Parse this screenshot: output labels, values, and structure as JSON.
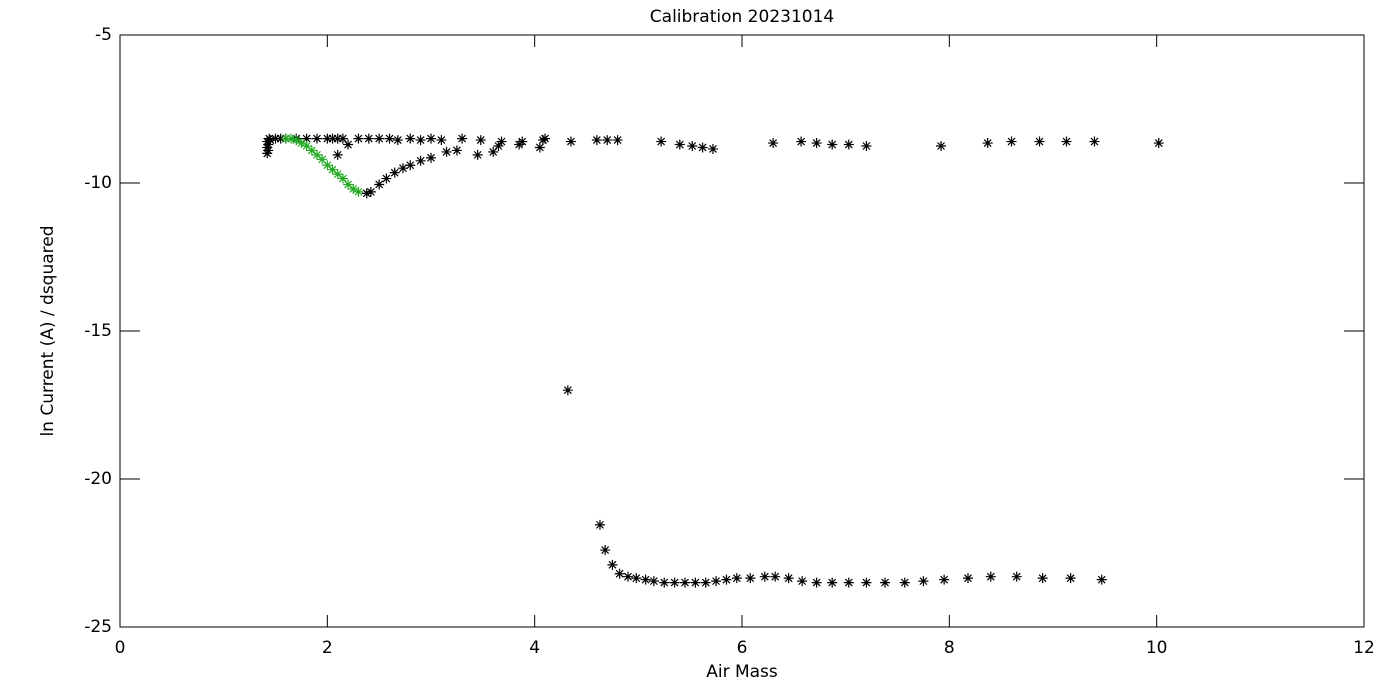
{
  "chart_data": {
    "type": "scatter",
    "title": "Calibration 20231014",
    "x_label": "Air Mass",
    "y_label": "ln Current (A) / dsquared",
    "xlim": [
      0,
      12
    ],
    "ylim": [
      -25,
      -5
    ],
    "xticks": [
      0,
      2,
      4,
      6,
      8,
      10,
      12
    ],
    "yticks": [
      -25,
      -20,
      -15,
      -10,
      -5
    ],
    "marker": "asterisk",
    "series": [
      {
        "color": "#000000",
        "x": [
          1.42,
          1.43,
          1.42,
          1.43,
          1.42,
          1.44,
          1.45,
          1.5,
          1.55,
          1.6,
          1.7,
          1.8,
          1.9,
          2.0,
          2.05,
          2.1,
          2.15,
          2.3,
          2.4,
          2.5,
          2.6,
          2.68,
          2.8,
          2.9,
          3.0,
          3.1,
          3.3,
          3.48,
          3.68,
          3.88,
          4.1,
          4.35,
          4.6,
          4.7,
          4.8,
          5.22,
          5.4,
          5.52,
          5.62,
          5.72,
          6.3,
          6.57,
          6.72,
          6.87,
          7.03,
          7.2,
          7.92,
          8.37,
          8.6,
          8.87,
          9.13,
          9.4,
          10.02,
          2.1,
          2.2,
          2.38,
          2.42,
          2.5,
          2.57,
          2.65,
          2.73,
          2.8,
          2.9,
          3.0,
          3.15,
          3.25,
          3.45,
          3.6,
          3.65,
          3.85,
          4.05,
          4.08,
          4.32,
          4.63,
          4.68,
          4.75,
          4.82,
          4.9,
          4.98,
          5.07,
          5.15,
          5.25,
          5.35,
          5.45,
          5.55,
          5.65,
          5.75,
          5.85,
          5.95,
          6.08,
          6.22,
          6.32,
          6.45,
          6.58,
          6.72,
          6.87,
          7.03,
          7.2,
          7.38,
          7.57,
          7.75,
          7.95,
          8.18,
          8.4,
          8.65,
          8.9,
          9.17,
          9.47
        ],
        "values": [
          -8.6,
          -8.7,
          -8.8,
          -8.9,
          -9.0,
          -8.5,
          -8.55,
          -8.5,
          -8.5,
          -8.5,
          -8.5,
          -8.5,
          -8.5,
          -8.5,
          -8.5,
          -8.5,
          -8.5,
          -8.5,
          -8.5,
          -8.5,
          -8.5,
          -8.55,
          -8.5,
          -8.55,
          -8.5,
          -8.55,
          -8.5,
          -8.55,
          -8.6,
          -8.6,
          -8.5,
          -8.6,
          -8.55,
          -8.55,
          -8.55,
          -8.6,
          -8.7,
          -8.75,
          -8.8,
          -8.85,
          -8.65,
          -8.6,
          -8.65,
          -8.7,
          -8.7,
          -8.75,
          -8.75,
          -8.65,
          -8.6,
          -8.6,
          -8.6,
          -8.6,
          -8.65,
          -9.05,
          -8.7,
          -10.35,
          -10.3,
          -10.05,
          -9.85,
          -9.65,
          -9.5,
          -9.4,
          -9.25,
          -9.15,
          -8.95,
          -8.9,
          -9.05,
          -8.95,
          -8.75,
          -8.7,
          -8.8,
          -8.55,
          -17.0,
          -21.55,
          -22.4,
          -22.9,
          -23.2,
          -23.3,
          -23.35,
          -23.4,
          -23.45,
          -23.5,
          -23.5,
          -23.5,
          -23.5,
          -23.5,
          -23.45,
          -23.4,
          -23.35,
          -23.35,
          -23.3,
          -23.3,
          -23.35,
          -23.45,
          -23.5,
          -23.5,
          -23.5,
          -23.5,
          -23.5,
          -23.5,
          -23.45,
          -23.4,
          -23.35,
          -23.3,
          -23.3,
          -23.35,
          -23.35,
          -23.4
        ]
      },
      {
        "color": "#22aa22",
        "x": [
          1.6,
          1.65,
          1.7,
          1.75,
          1.8,
          1.85,
          1.9,
          1.95,
          2.0,
          2.05,
          2.1,
          2.15,
          2.2,
          2.25,
          2.3
        ],
        "values": [
          -8.5,
          -8.5,
          -8.55,
          -8.65,
          -8.75,
          -8.9,
          -9.05,
          -9.2,
          -9.4,
          -9.55,
          -9.7,
          -9.85,
          -10.05,
          -10.2,
          -10.3
        ]
      }
    ]
  }
}
